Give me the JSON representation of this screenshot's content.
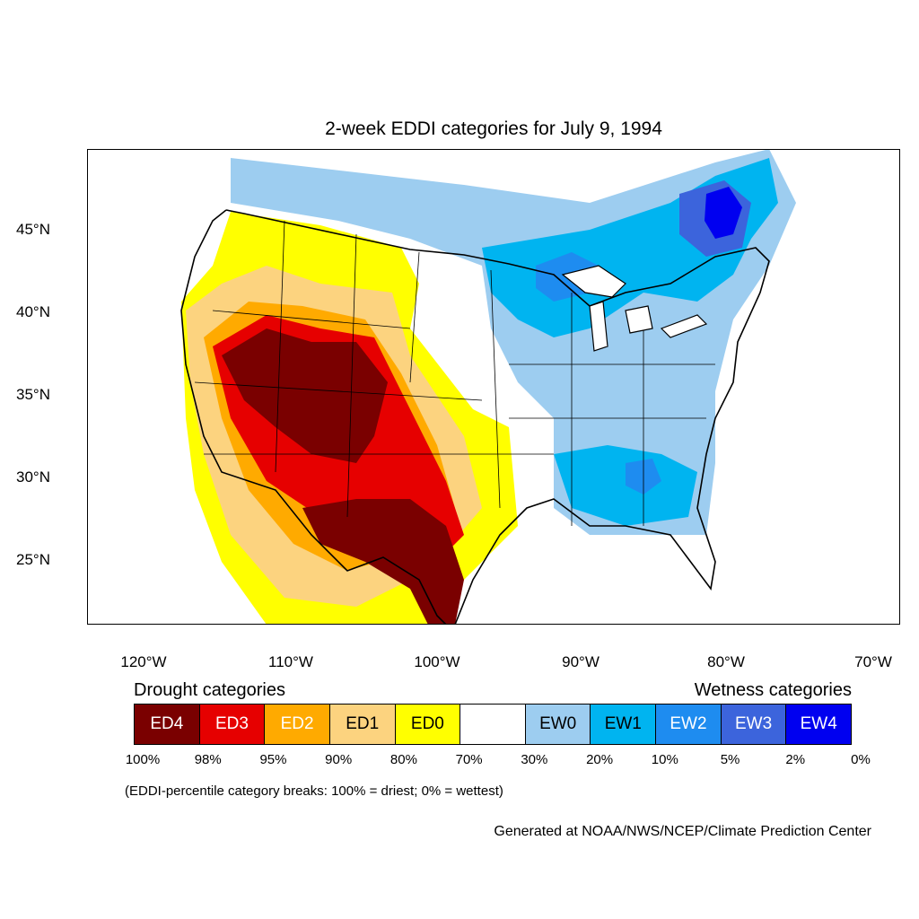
{
  "title": "2-week EDDI categories for July 9, 1994",
  "latitude_labels": [
    "45°N",
    "40°N",
    "35°N",
    "30°N",
    "25°N"
  ],
  "longitude_labels": [
    "120°W",
    "110°W",
    "100°W",
    "90°W",
    "80°W",
    "70°W"
  ],
  "legend": {
    "drought_heading": "Drought categories",
    "wetness_heading": "Wetness categories",
    "categories": [
      {
        "label": "ED4",
        "color": "#7a0000",
        "text_color": "#ffffff"
      },
      {
        "label": "ED3",
        "color": "#e60000",
        "text_color": "#ffffff"
      },
      {
        "label": "ED2",
        "color": "#ffaa00",
        "text_color": "#ffffff"
      },
      {
        "label": "ED1",
        "color": "#fcd37f",
        "text_color": "#000000"
      },
      {
        "label": "ED0",
        "color": "#ffff00",
        "text_color": "#000000"
      },
      {
        "label": "",
        "color": "#ffffff",
        "text_color": "#000000"
      },
      {
        "label": "EW0",
        "color": "#9dcdf0",
        "text_color": "#000000"
      },
      {
        "label": "EW1",
        "color": "#00b4f0",
        "text_color": "#000000"
      },
      {
        "label": "EW2",
        "color": "#1e8cf0",
        "text_color": "#ffffff"
      },
      {
        "label": "EW3",
        "color": "#3c64dc",
        "text_color": "#ffffff"
      },
      {
        "label": "EW4",
        "color": "#0000f0",
        "text_color": "#ffffff"
      }
    ],
    "percent_breaks": [
      "100%",
      "98%",
      "95%",
      "90%",
      "80%",
      "70%",
      "30%",
      "20%",
      "10%",
      "5%",
      "2%",
      "0%"
    ]
  },
  "note": "(EDDI-percentile category breaks: 100% = driest; 0% = wettest)",
  "credit": "Generated at NOAA/NWS/NCEP/Climate Prediction Center"
}
